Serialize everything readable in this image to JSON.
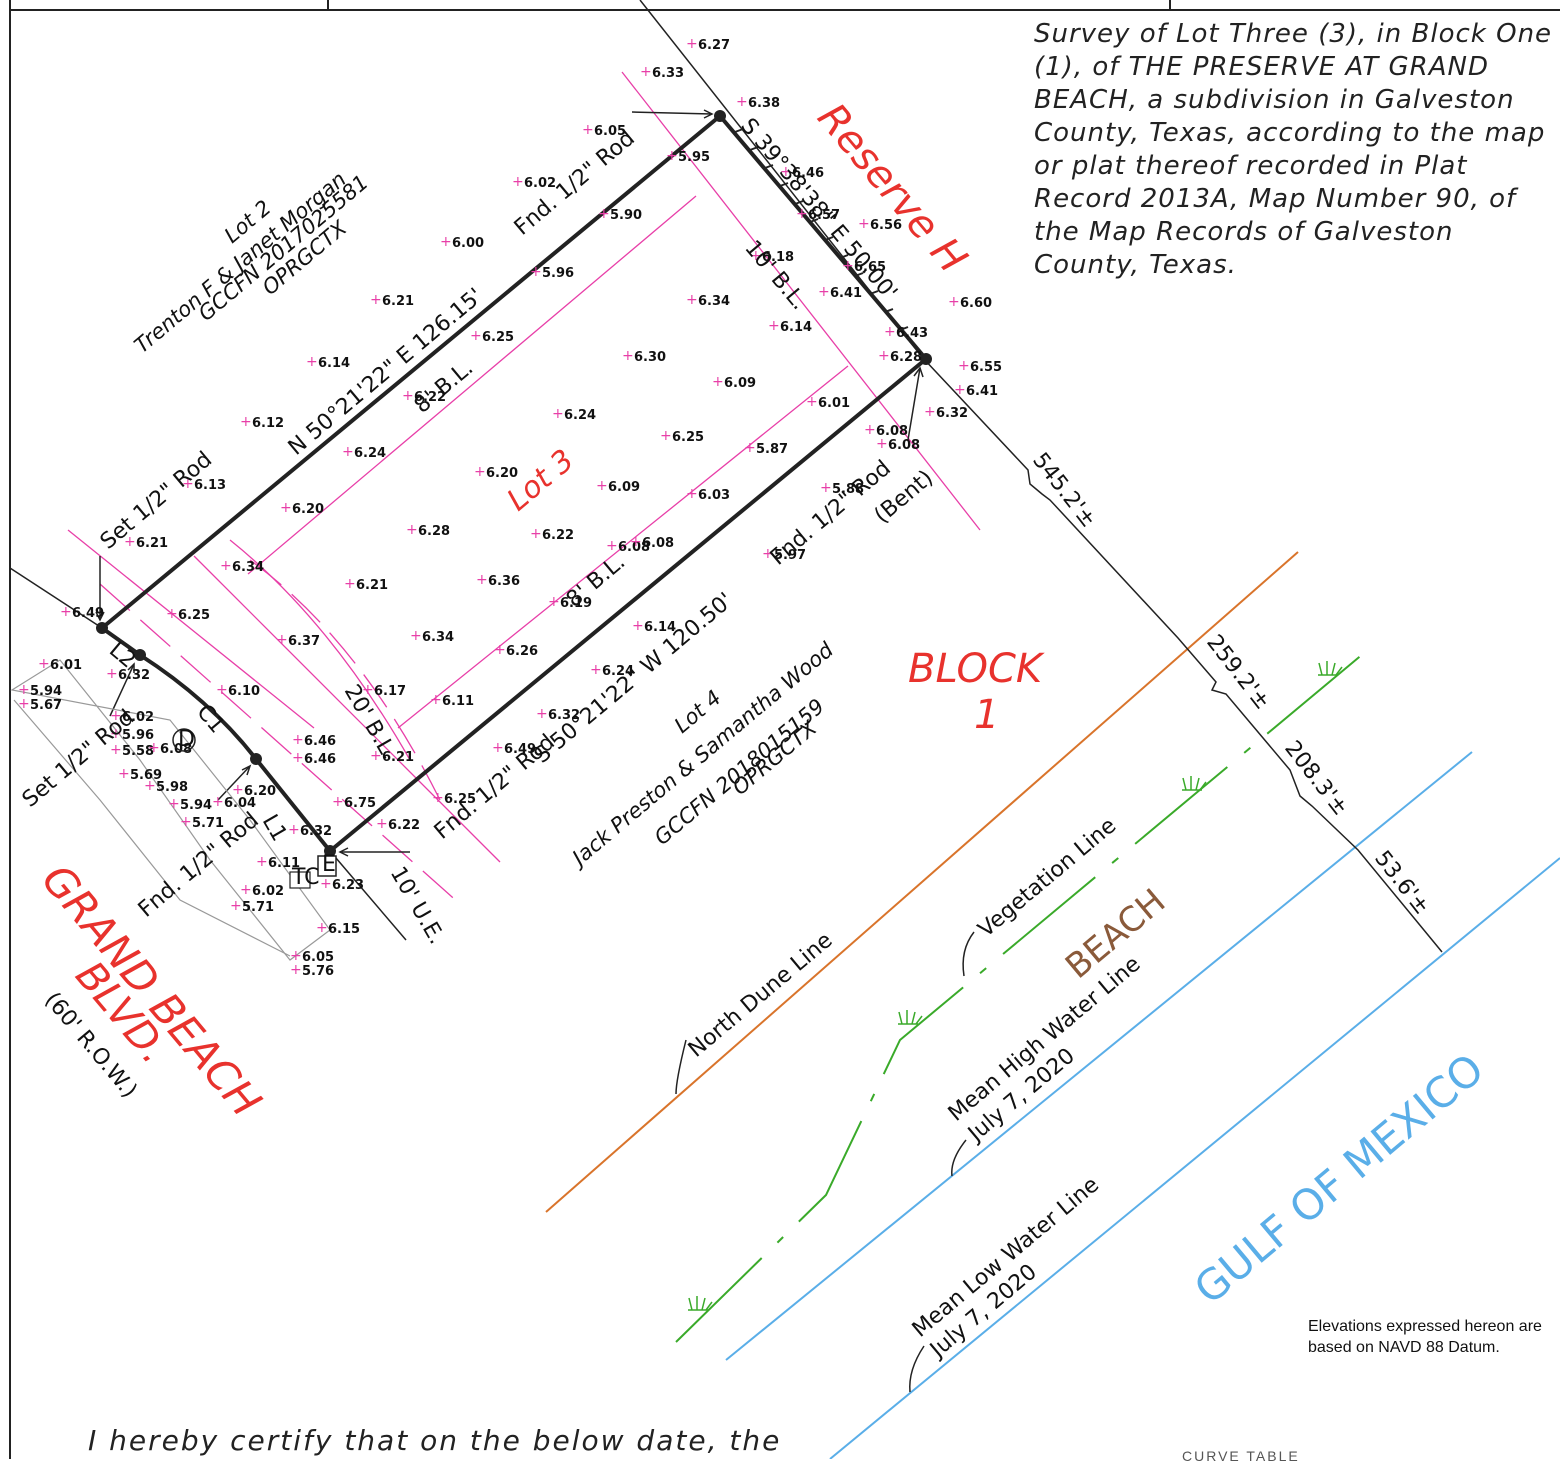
{
  "legal_description": "Survey of Lot Three (3), in Block One (1), of THE PRESERVE AT GRAND BEACH, a subdivision in Galveston County, Texas, according to the map or plat thereof recorded in Plat Record 2013A, Map Number 90, of the Map Records of Galveston County, Texas.",
  "datum_note": "Elevations expressed hereon are based on NAVD 88 Datum.",
  "certification_text": "I hereby certify that on the below date, the",
  "curve_table_heading": "CURVE TABLE",
  "colors": {
    "boundary": "#222222",
    "setback": "#e83fa8",
    "label_red": "#e8322d",
    "dune": "#d9742b",
    "vegetation": "#3aaa2a",
    "water": "#5aaee8",
    "beach": "#8a5a3a"
  },
  "labels": {
    "lot_3": "Lot 3",
    "block_1_line1": "BLOCK",
    "block_1_line2": "1",
    "reserve_h": "Reserve H",
    "grand_beach": "GRAND BEACH",
    "blvd": "BLVD.",
    "row": "(60' R.O.W.)",
    "beach": "BEACH",
    "gulf": "GULF OF MEXICO",
    "north_dune_line": "North Dune Line",
    "vegetation_line": "Vegetation Line",
    "mhw_line1": "Mean High Water Line",
    "mhw_line2": "July 7, 2020",
    "mlw_line1": "Mean Low Water Line",
    "mlw_line2": "July 7, 2020"
  },
  "adjoiners": {
    "lot_2_line1": "Lot 2",
    "lot_2_line2": "Trenton F & Janet Morgan",
    "lot_2_line3": "GCCFN 2017025581",
    "lot_2_line4": "OPRGCTX",
    "lot_4_line1": "Lot 4",
    "lot_4_line2": "Jack Preston & Samantha Wood",
    "lot_4_line3": "GCCFN 2018015159",
    "lot_4_line4": "OPRGCTX"
  },
  "bearings": {
    "north": "N 50°21'22\" E   126.15'",
    "east": "S 39°38'38\" E  50.00'",
    "south": "S 50°21'22\" W   120.50'"
  },
  "setbacks": {
    "bl8_north": "8' B.L.",
    "bl8_south": "8' B.L.",
    "bl10_east": "10' B.L.",
    "bl20_west": "20' B.L.",
    "ue10": "10' U.E."
  },
  "monuments": {
    "fnd_rod_n": "Fnd. 1/2\" Rod",
    "set_rod_nw": "Set 1/2\" Rod",
    "fnd_rod_se_1": "Fnd. 1/2\" Rod",
    "fnd_rod_se_2": "(Bent)",
    "fnd_rod_sw": "Fnd. 1/2\" Rod",
    "set_rod_w": "Set 1/2\" Rod",
    "fnd_rod_w": "Fnd. 1/2\" Rod"
  },
  "curve_labels": {
    "l1": "L1",
    "l2": "L2",
    "c1": "C1",
    "symbol_d": "D",
    "symbol_e": "E",
    "symbol_tc": "TC"
  },
  "distances": {
    "d1": "545.2'±",
    "d2": "259.2'±",
    "d3": "208.3'±",
    "d4": "53.6'±"
  },
  "elevations": [
    "6.27",
    "6.33",
    "6.38",
    "6.05",
    "5.95",
    "6.02",
    "5.90",
    "6.00",
    "5.96",
    "6.21",
    "6.25",
    "6.14",
    "6.22",
    "6.12",
    "6.24",
    "6.13",
    "6.21",
    "6.20",
    "6.34",
    "6.49",
    "6.25",
    "6.37",
    "6.01",
    "6.32",
    "5.94",
    "5.67",
    "6.02",
    "5.96",
    "5.58",
    "6.08",
    "5.69",
    "5.98",
    "5.94",
    "5.71",
    "6.04",
    "6.20",
    "6.10",
    "6.46",
    "6.46",
    "6.21",
    "6.17",
    "6.11",
    "6.75",
    "6.25",
    "6.22",
    "6.32",
    "6.11",
    "6.02",
    "5.71",
    "6.23",
    "6.15",
    "6.05",
    "5.76",
    "6.28",
    "6.21",
    "6.36",
    "6.34",
    "6.26",
    "6.20",
    "6.09",
    "6.22",
    "6.08",
    "6.19",
    "6.14",
    "6.24",
    "6.32",
    "6.49",
    "6.24",
    "6.30",
    "6.25",
    "6.03",
    "6.08",
    "5.97",
    "6.34",
    "6.09",
    "6.01",
    "5.87",
    "5.88",
    "6.18",
    "6.57",
    "6.46",
    "6.56",
    "6.65",
    "6.41",
    "6.14",
    "6.43",
    "6.28",
    "6.60",
    "6.55",
    "6.41",
    "6.32",
    "6.08",
    "6.08"
  ]
}
